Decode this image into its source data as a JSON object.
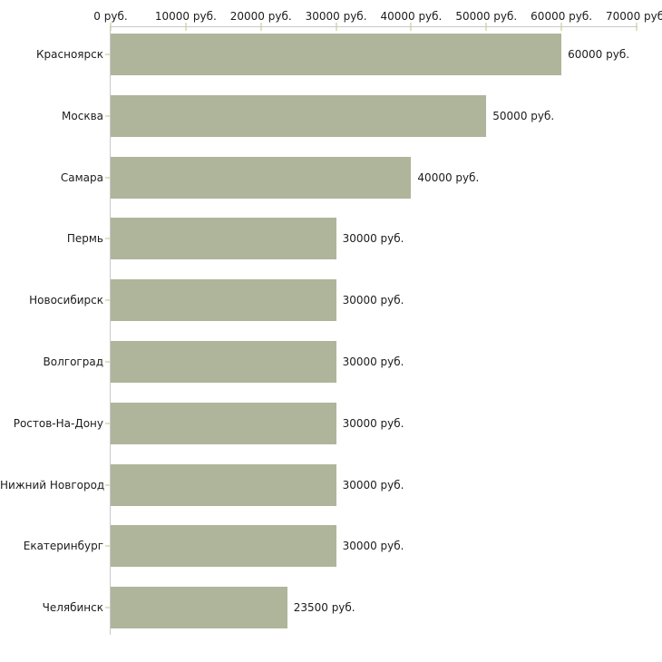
{
  "chart_data": {
    "type": "bar",
    "orientation": "horizontal",
    "title": "",
    "xlabel": "",
    "ylabel": "",
    "axis_position": "top",
    "grid": false,
    "legend": false,
    "xlim": [
      0,
      70000
    ],
    "x_ticks": [
      0,
      10000,
      20000,
      30000,
      40000,
      50000,
      60000,
      70000
    ],
    "x_tick_labels": [
      "0 руб.",
      "10000 руб.",
      "20000 руб.",
      "30000 руб.",
      "40000 руб.",
      "50000 руб.",
      "60000 руб.",
      "70000 руб."
    ],
    "categories": [
      "Красноярск",
      "Москва",
      "Самара",
      "Пермь",
      "Новосибирск",
      "Волгоград",
      "Ростов-На-Дону",
      "Нижний Новгород",
      "Екатеринбург",
      "Челябинск"
    ],
    "values": [
      60000,
      50000,
      40000,
      30000,
      30000,
      30000,
      30000,
      30000,
      30000,
      23500
    ],
    "value_labels": [
      "60000 руб.",
      "50000 руб.",
      "40000 руб.",
      "30000 руб.",
      "30000 руб.",
      "30000 руб.",
      "30000 руб.",
      "30000 руб.",
      "30000 руб.",
      "23500 руб."
    ]
  },
  "colors": {
    "background": "#ffffff",
    "bar_fill": "#afb59a",
    "axis_line": "#c9c9c9",
    "tick_mark": "#dce3bf",
    "label_text": "#1c1c1c"
  }
}
